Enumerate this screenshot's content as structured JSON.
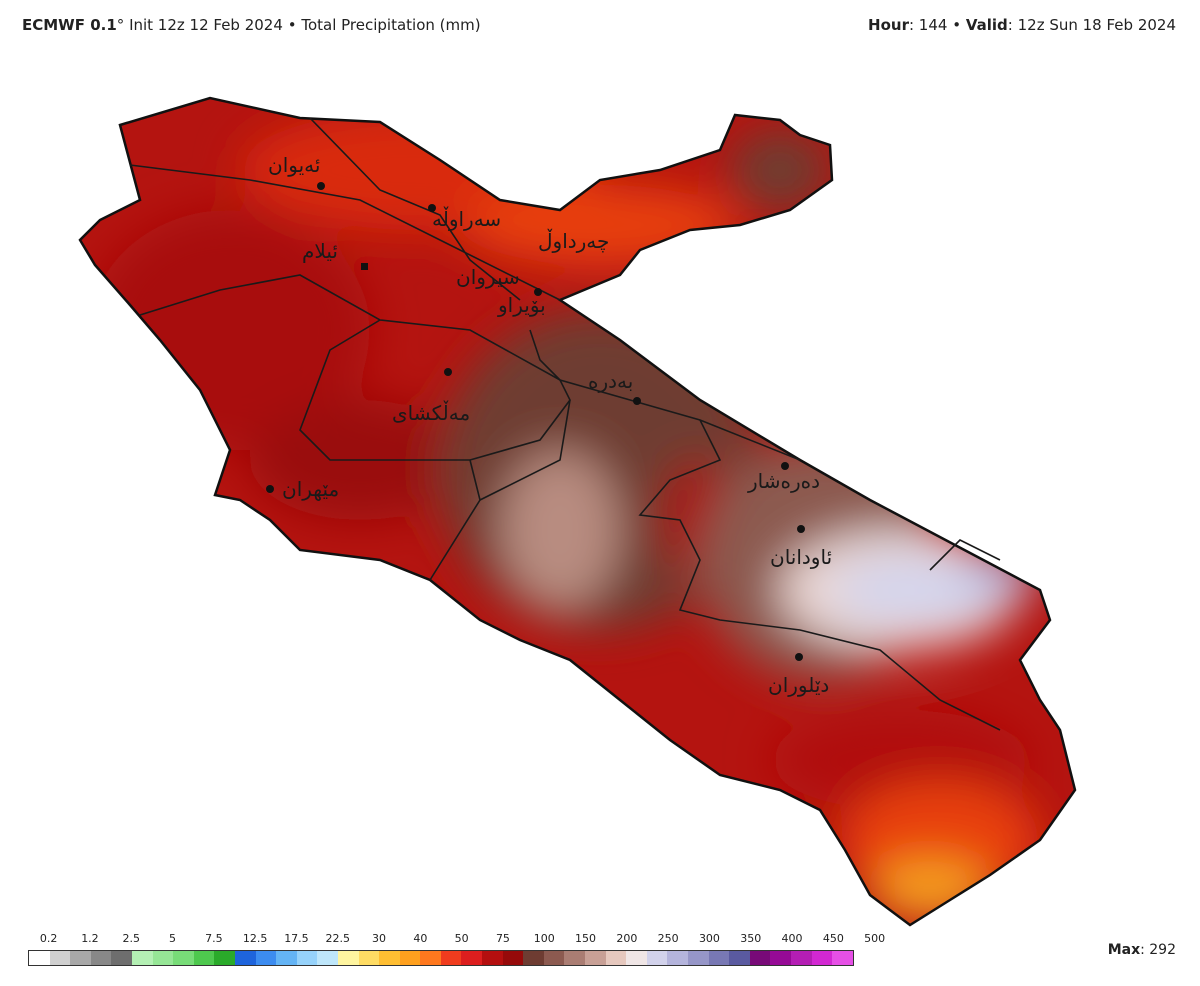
{
  "header": {
    "model": "ECMWF 0.1",
    "degree": "°",
    "init": "Init 12z 12 Feb 2024",
    "sep": "•",
    "variable": "Total Precipitation (mm)",
    "hour_label": "Hour",
    "hour_value": ": 144",
    "valid_label": "Valid",
    "valid_value": ": 12z Sun 18 Feb 2024"
  },
  "cities": [
    {
      "name": "ئەیوان"
    },
    {
      "name": "سەراوڵە"
    },
    {
      "name": "چەرداوڵ"
    },
    {
      "name": "ئیلام"
    },
    {
      "name": "سیروان"
    },
    {
      "name": "بۆیراو"
    },
    {
      "name": "مەڵکشای"
    },
    {
      "name": "بەدرە"
    },
    {
      "name": "مێهران"
    },
    {
      "name": "دەرەشار"
    },
    {
      "name": "ئاودانان"
    },
    {
      "name": "دێلوران"
    }
  ],
  "legend": {
    "ticks": [
      "0.2",
      "1.2",
      "2.5",
      "5",
      "7.5",
      "12.5",
      "17.5",
      "22.5",
      "30",
      "40",
      "50",
      "75",
      "100",
      "150",
      "200",
      "250",
      "300",
      "350",
      "400",
      "450",
      "500"
    ],
    "colors": [
      "#ffffff",
      "#d0d0d0",
      "#a8a8a8",
      "#888888",
      "#6e6e6e",
      "#b4f0b4",
      "#96e696",
      "#78dc78",
      "#4ec84e",
      "#2aaa2a",
      "#1e64dc",
      "#3c8cf0",
      "#64b4f5",
      "#96d2fa",
      "#bee6fa",
      "#fff5a0",
      "#ffdc64",
      "#ffbe32",
      "#ffa01e",
      "#ff781e",
      "#f03c1e",
      "#dc1e1e",
      "#b40f0f",
      "#960a0a",
      "#6e3c32",
      "#8c5a50",
      "#aa7d73",
      "#c8a096",
      "#e6c8be",
      "#f0e6e6",
      "#d2d2eb",
      "#b4b4dc",
      "#9696c8",
      "#7878b4",
      "#5a5aa0",
      "#780a78",
      "#960a96",
      "#b41eb4",
      "#d228d2",
      "#e650e6"
    ],
    "max_label": "Max",
    "max_value": ": 292"
  },
  "colors": {
    "deep_red": "#a80e0e",
    "red": "#c41a10",
    "bright_red": "#e03410",
    "brown": "#6e3c32",
    "light_brown": "#b88c80",
    "pale": "#ecd8d4",
    "lavender": "#d4d4ec",
    "orange": "#f6a020"
  }
}
